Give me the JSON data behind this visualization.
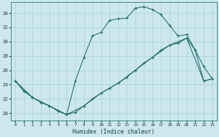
{
  "xlabel": "Humidex (Indice chaleur)",
  "bg_color": "#cce8ee",
  "grid_color": "#aaccd4",
  "line_color": "#1f6b6b",
  "xlim": [
    -0.5,
    23.5
  ],
  "ylim": [
    19.0,
    35.5
  ],
  "xticks": [
    0,
    1,
    2,
    3,
    4,
    5,
    6,
    7,
    8,
    9,
    10,
    11,
    12,
    13,
    14,
    15,
    16,
    17,
    18,
    19,
    20,
    21,
    22,
    23
  ],
  "yticks": [
    20,
    22,
    24,
    26,
    28,
    30,
    32,
    34
  ],
  "curve1_x": [
    0,
    1,
    2,
    3,
    4,
    5,
    6,
    7,
    8,
    9,
    10,
    11,
    12,
    13,
    14,
    15,
    16,
    17,
    18,
    19,
    20,
    21,
    22,
    23
  ],
  "curve1_y": [
    24.5,
    23.1,
    22.2,
    21.5,
    21.0,
    20.3,
    19.8,
    24.5,
    27.8,
    30.8,
    31.3,
    33.0,
    33.2,
    33.3,
    34.7,
    34.9,
    34.5,
    33.8,
    32.3,
    30.8,
    31.0,
    28.8,
    26.5,
    24.8
  ],
  "curve2_x": [
    0,
    1,
    2,
    3,
    4,
    5,
    6,
    7,
    8,
    9,
    10,
    11,
    12,
    13,
    14,
    15,
    16,
    17,
    18,
    19,
    20,
    21,
    22,
    23
  ],
  "curve2_y": [
    24.5,
    23.1,
    22.2,
    21.5,
    21.0,
    20.3,
    19.8,
    20.1,
    21.0,
    22.0,
    22.8,
    23.5,
    24.2,
    25.0,
    26.0,
    27.0,
    27.8,
    28.8,
    29.5,
    29.8,
    30.5,
    28.8,
    24.5,
    24.8
  ],
  "curve3_x": [
    0,
    2,
    4,
    6,
    8,
    10,
    12,
    14,
    16,
    18,
    20,
    22,
    23
  ],
  "curve3_y": [
    24.5,
    22.2,
    21.0,
    19.8,
    21.0,
    22.8,
    24.2,
    26.0,
    27.8,
    29.5,
    30.5,
    24.5,
    24.8
  ]
}
